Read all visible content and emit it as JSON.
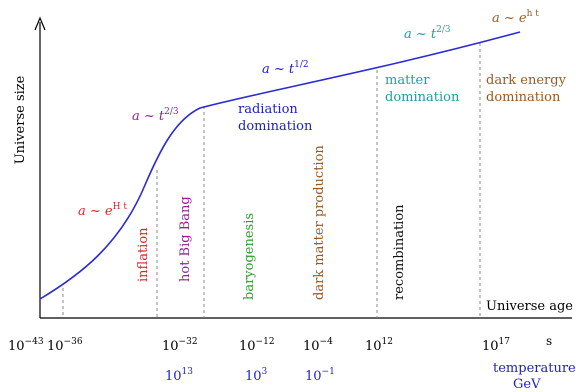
{
  "axes": {
    "y_label": "Universe size",
    "x_label": "Universe age",
    "x_unit": "s",
    "temperature_unit_line1": "temperature",
    "temperature_unit_line2": "GeV"
  },
  "time_ticks": [
    {
      "base": "10",
      "exp": "−43"
    },
    {
      "base": "10",
      "exp": "−36"
    },
    {
      "base": "10",
      "exp": "−32"
    },
    {
      "base": "10",
      "exp": "−12"
    },
    {
      "base": "10",
      "exp": "−4"
    },
    {
      "base": "10",
      "exp": "12"
    },
    {
      "base": "10",
      "exp": "17"
    }
  ],
  "temperature_ticks": [
    {
      "base": "10",
      "exp": "13"
    },
    {
      "base": "10",
      "exp": "3"
    },
    {
      "base": "10",
      "exp": "−1"
    }
  ],
  "growth_laws": {
    "inflation": {
      "pre": "a ~ e",
      "exp": "H t"
    },
    "early_power": {
      "pre": "a ~ t",
      "exp": "2/3"
    },
    "radiation": {
      "pre": "a ~ t",
      "exp": "1/2"
    },
    "matter": {
      "pre": "a ~ t",
      "exp": "2/3"
    },
    "dark_energy": {
      "pre": "a ~ e",
      "exp": "h t"
    }
  },
  "eras": {
    "radiation_line1": "radiation",
    "radiation_line2": "domination",
    "matter_line1": "matter",
    "matter_line2": "domination",
    "dark_energy_line1": "dark energy",
    "dark_energy_line2": "domination"
  },
  "events": {
    "inflation": "inflation",
    "hot_big_bang": "hot Big Bang",
    "baryogenesis": "baryogenesis",
    "dark_matter": "dark matter production",
    "recombination": "recombination"
  },
  "colors": {
    "curve": "#2b2bd6",
    "red": "#e8202a",
    "purple": "#9a1c9a",
    "blue": "#2020c8",
    "green": "#2ca02c",
    "brown": "#9a5a1e",
    "teal": "#1f9e9e",
    "black": "#111111",
    "dash": "#888888"
  }
}
